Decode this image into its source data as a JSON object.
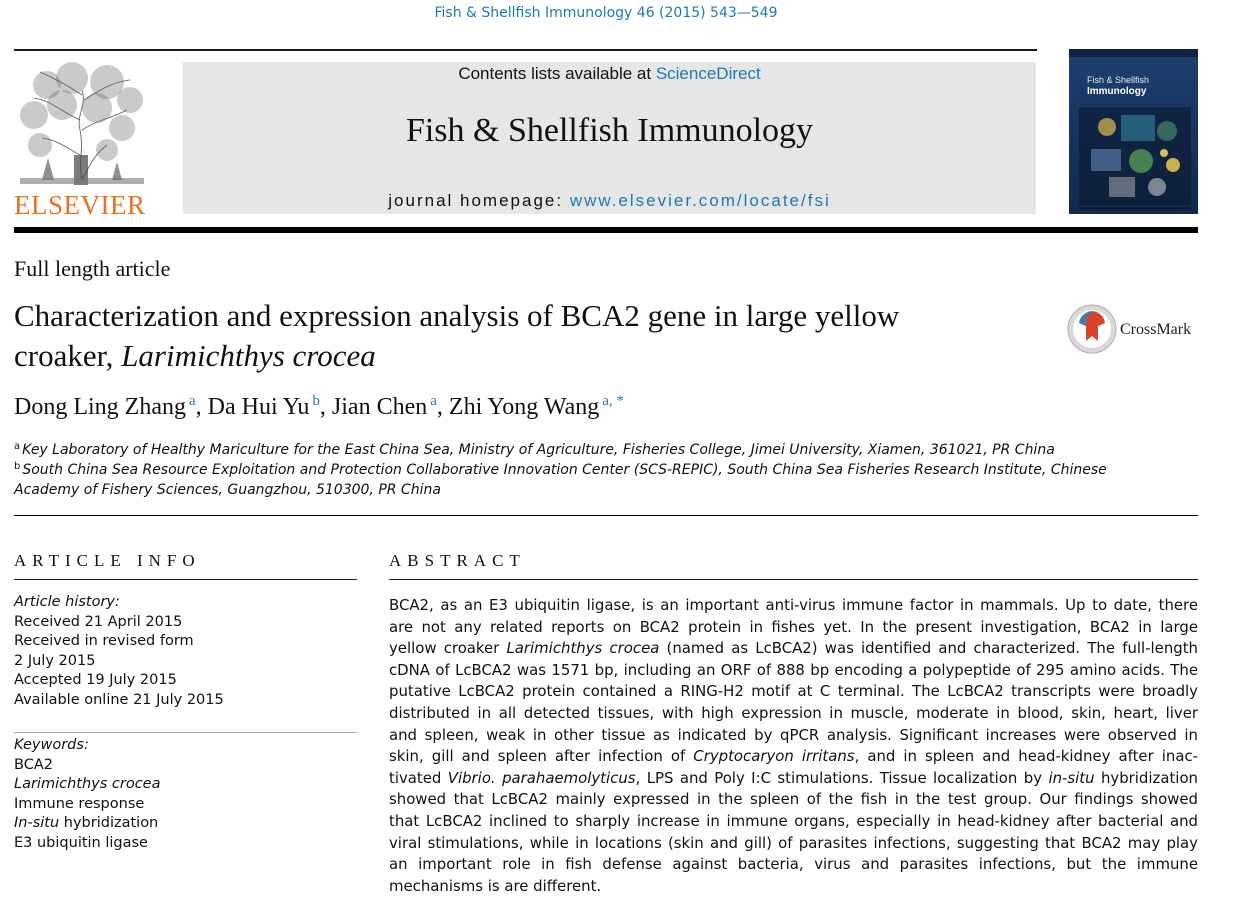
{
  "running_head": "Fish & Shellfish Immunology 46 (2015) 543—549",
  "publisher": {
    "name": "ELSEVIER",
    "color": "#e9711c"
  },
  "masthead": {
    "contents_prefix": "Contents lists available at ",
    "contents_link": "ScienceDirect",
    "journal_title": "Fish & Shellfish Immunology",
    "homepage_prefix": "journal homepage: ",
    "homepage_url": "www.elsevier.com/locate/fsi"
  },
  "cover": {
    "line1": "Fish & Shellfish",
    "line2": "Immunology"
  },
  "article_type": "Full length article",
  "title": {
    "line1": "Characterization and expression analysis of BCA2 gene in large yellow",
    "line2_plain": "croaker, ",
    "line2_italic": "Larimichthys crocea"
  },
  "crossmark_label": "CrossMark",
  "authors": [
    {
      "name": "Dong Ling Zhang",
      "sup": "a"
    },
    {
      "name": "Da Hui Yu",
      "sup": "b"
    },
    {
      "name": "Jian Chen",
      "sup": "a"
    },
    {
      "name": "Zhi Yong Wang",
      "sup": "a, *"
    }
  ],
  "affiliations": [
    {
      "mark": "a",
      "text": "Key Laboratory of Healthy Mariculture for the East China Sea, Ministry of Agriculture, Fisheries College, Jimei University, Xiamen, 361021, PR China"
    },
    {
      "mark": "b",
      "line1": "South China Sea Resource Exploitation and Protection Collaborative Innovation Center (SCS-REPIC), South China Sea Fisheries Research Institute, Chinese",
      "line2": "Academy of Fishery Sciences, Guangzhou, 510300, PR China"
    }
  ],
  "article_info": {
    "heading": "ARTICLE INFO",
    "history_heading": "Article history:",
    "history": [
      "Received 21 April 2015",
      "Received in revised form",
      "2 July 2015",
      "Accepted 19 July 2015",
      "Available online 21 July 2015"
    ],
    "keywords_heading": "Keywords:",
    "keywords": {
      "k1": "BCA2",
      "k2": "Larimichthys crocea",
      "k3": "Immune response",
      "k4_italic": "In-situ",
      "k4_rest": " hybridization",
      "k5": "E3 ubiquitin ligase"
    }
  },
  "abstract": {
    "heading": "ABSTRACT",
    "lines": {
      "l1": "BCA2, as an E3 ubiquitin ligase, is an important anti-virus immune factor in mammals. Up to date, there",
      "l2": "are not any related reports on BCA2 protein in fishes yet. In the present investigation, BCA2 in large",
      "l3a": "yellow croaker ",
      "l3i": "Larimichthys crocea",
      "l3b": " (named as LcBCA2) was identified and characterized. The full-length",
      "l4": "cDNA of LcBCA2 was 1571 bp, including an ORF of 888 bp encoding a polypeptide of 295 amino acids. The",
      "l5": "putative LcBCA2 protein contained a RING-H2 motif at C terminal. The LcBCA2 transcripts were broadly",
      "l6": "distributed in all detected tissues, with high expression in muscle, moderate in blood, skin, heart, liver",
      "l7": "and spleen, weak in other tissue as indicated by qPCR analysis. Significant increases were observed in",
      "l8a": "skin, gill and spleen after infection of ",
      "l8i": "Cryptocaryon irritans",
      "l8b": ", and in spleen and head-kidney after inac-",
      "l9a": "tivated ",
      "l9i": "Vibrio. parahaemolyticus",
      "l9b": ", LPS and Poly I:C stimulations. Tissue localization by ",
      "l9i2": "in-situ",
      "l9c": " hybridization",
      "l10": "showed that LcBCA2 mainly expressed in the spleen of the fish in the test group. Our findings showed",
      "l11": "that LcBCA2 inclined to sharply increase in immune organs, especially in head-kidney after bacterial and",
      "l12": "viral stimulations, while in locations (skin and gill) of parasites infections, suggesting that BCA2 may play",
      "l13": "an important role in fish defense against bacteria, virus and parasites infections, but the immune",
      "l14": "mechanisms is are different."
    }
  },
  "colors": {
    "link": "#1a7bb0",
    "elsevier_orange": "#e9711c",
    "masthead_bg": "#e6e6e6"
  }
}
